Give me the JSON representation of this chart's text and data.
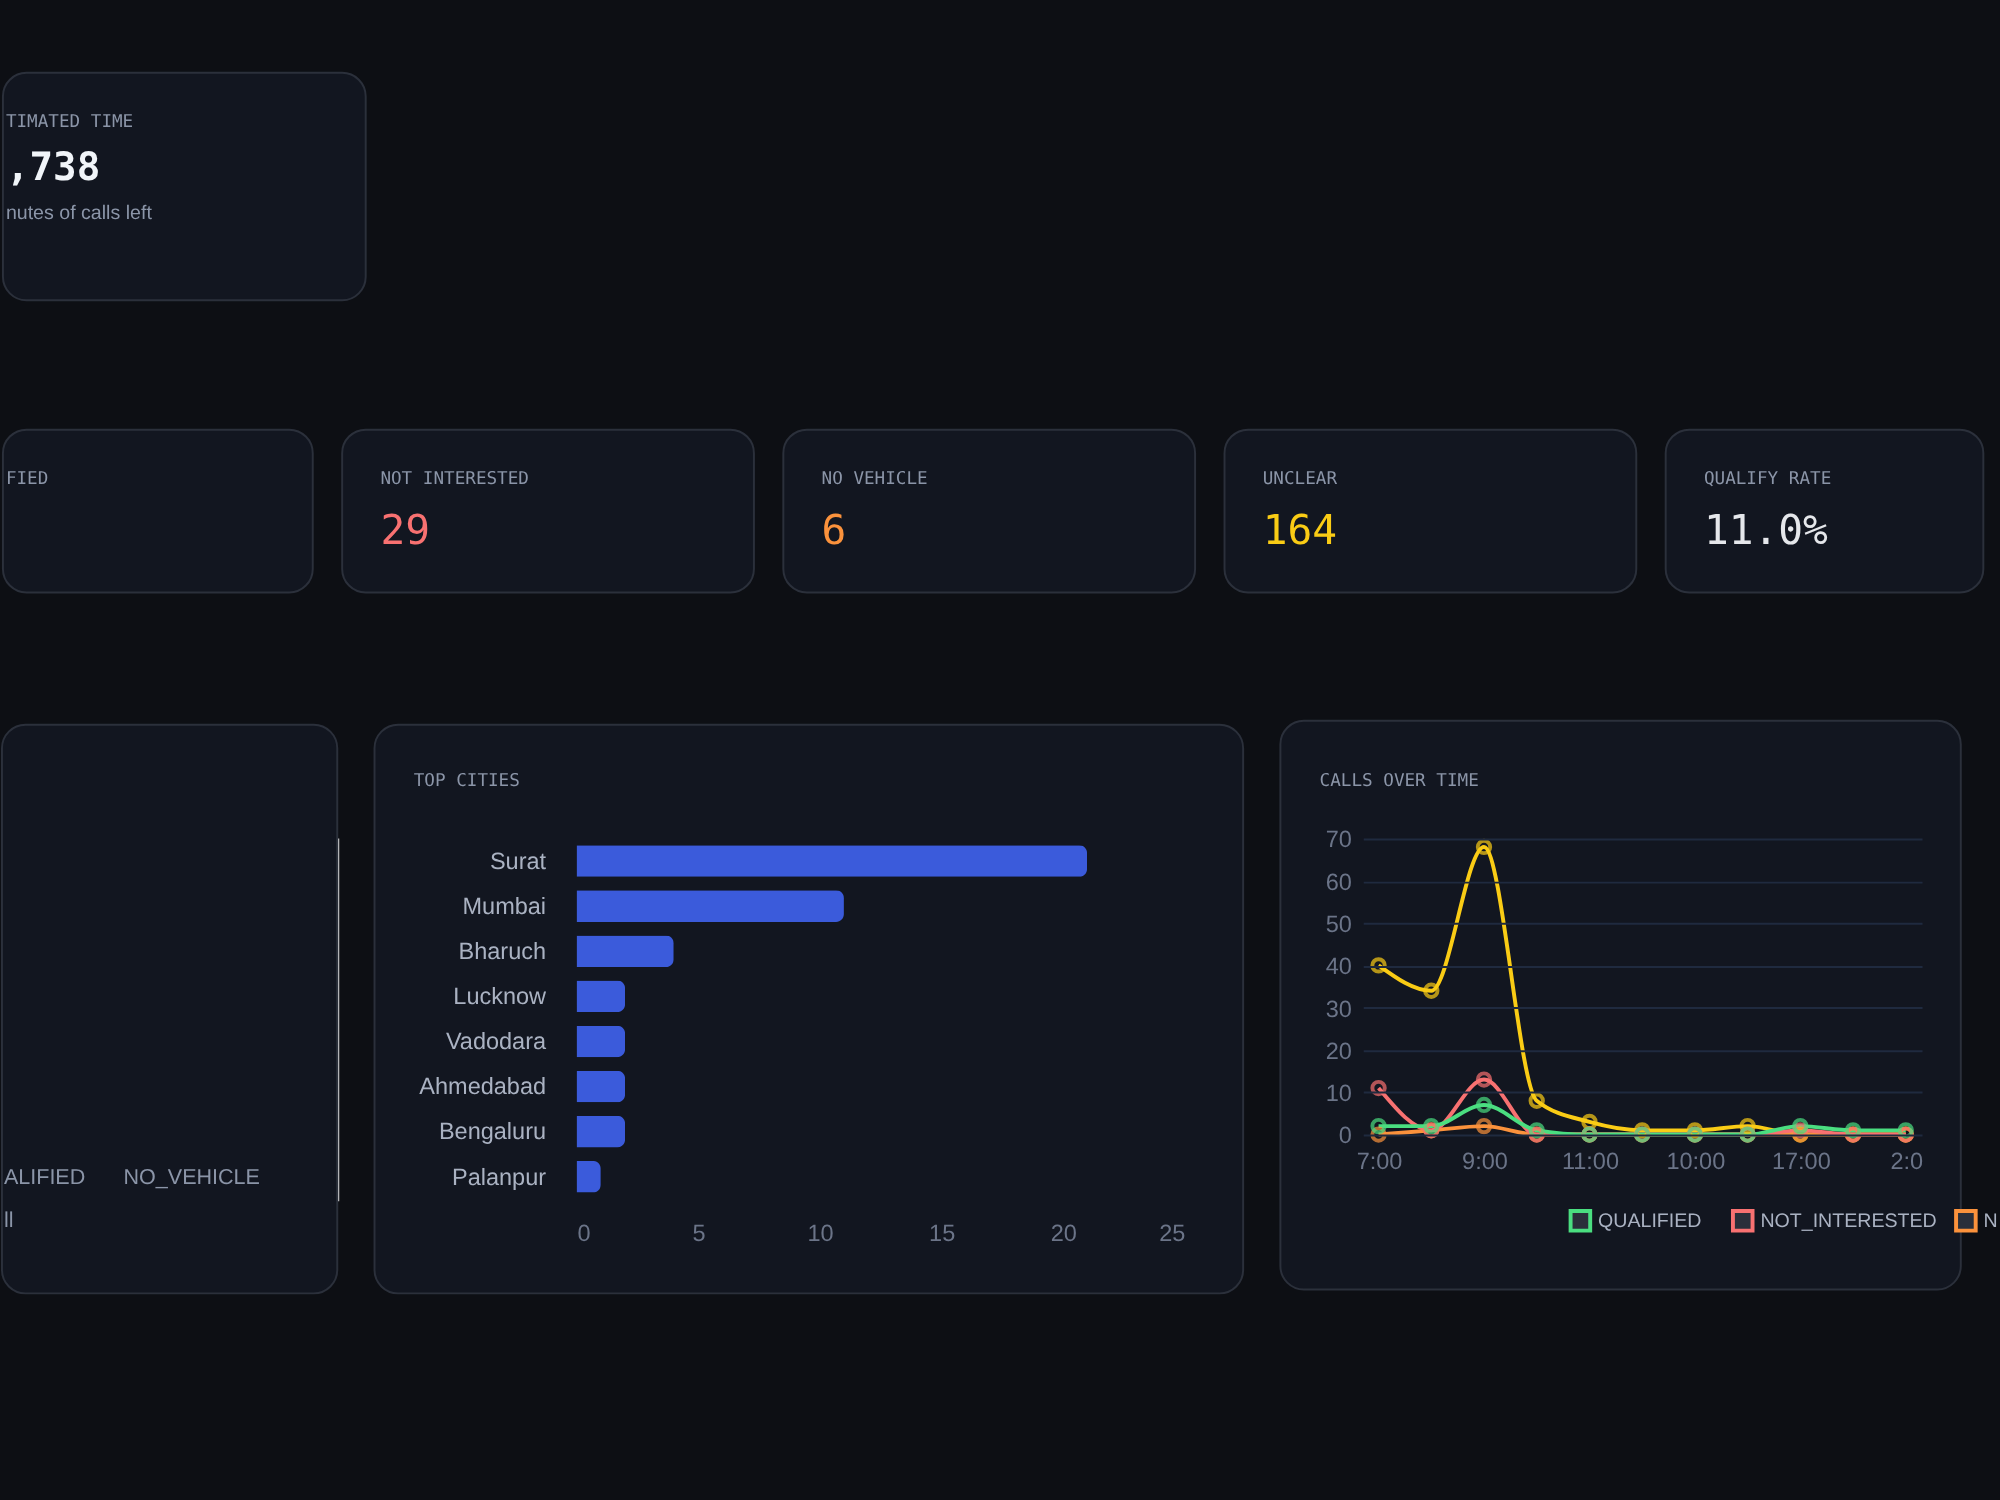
{
  "chart_data": [
    {
      "type": "other",
      "title": "TIMATED TIME",
      "annotations": [
        ",738",
        "nutes of calls left"
      ]
    },
    {
      "type": "other",
      "title": "FIED"
    },
    {
      "type": "other",
      "title": "NOT INTERESTED",
      "annotations": [
        "29"
      ]
    },
    {
      "type": "other",
      "title": "NO VEHICLE",
      "annotations": [
        "6"
      ]
    },
    {
      "type": "other",
      "title": "UNCLEAR",
      "annotations": [
        "164"
      ]
    },
    {
      "type": "other",
      "title": "QUALIFY RATE",
      "annotations": [
        "11.0%"
      ]
    },
    {
      "type": "other",
      "annotations": [
        "ALIFIED",
        "NO_VEHICLE",
        "ll"
      ]
    },
    {
      "type": "bar",
      "title": "TOP CITIES",
      "orientation": "horizontal",
      "categories": [
        "Surat",
        "Mumbai",
        "Bharuch",
        "Lucknow",
        "Vadodara",
        "Ahmedabad",
        "Bengaluru",
        "Palanpur"
      ],
      "values": [
        21,
        11,
        4,
        2,
        2,
        2,
        2,
        1
      ],
      "color": "#3b5bdb",
      "xlim": [
        0,
        25
      ],
      "xticks": [
        0,
        5,
        10,
        15,
        20,
        25
      ]
    },
    {
      "type": "line",
      "title": "CALLS OVER TIME",
      "categories": [
        "7:00",
        null,
        "9:00",
        null,
        "11:00",
        null,
        "10:00",
        null,
        "17:00",
        null,
        "2:0"
      ],
      "ylim": [
        0,
        70
      ],
      "yticks": [
        0,
        10,
        20,
        30,
        40,
        50,
        60,
        70
      ],
      "grid": "y",
      "legend": "bottom",
      "marker": "circle",
      "line_style": "solid",
      "series": [
        {
          "name": "QUALIFIED",
          "color": "#4ade80",
          "values": [
            2,
            2,
            7,
            1,
            0,
            0,
            0,
            0,
            2,
            1,
            1
          ]
        },
        {
          "name": "NOT_INTERESTED",
          "color": "#f87171",
          "values": [
            11,
            1,
            13,
            0,
            0,
            0,
            0,
            0,
            1,
            0,
            0
          ]
        },
        {
          "name": "N",
          "color": "#fb923c",
          "values": [
            0,
            1,
            2,
            0,
            0,
            0,
            0,
            0,
            0,
            0,
            0
          ]
        },
        {
          "color": "#facc15",
          "values": [
            40,
            34,
            68,
            8,
            3,
            1,
            1,
            2,
            0,
            0,
            0
          ]
        }
      ]
    }
  ]
}
